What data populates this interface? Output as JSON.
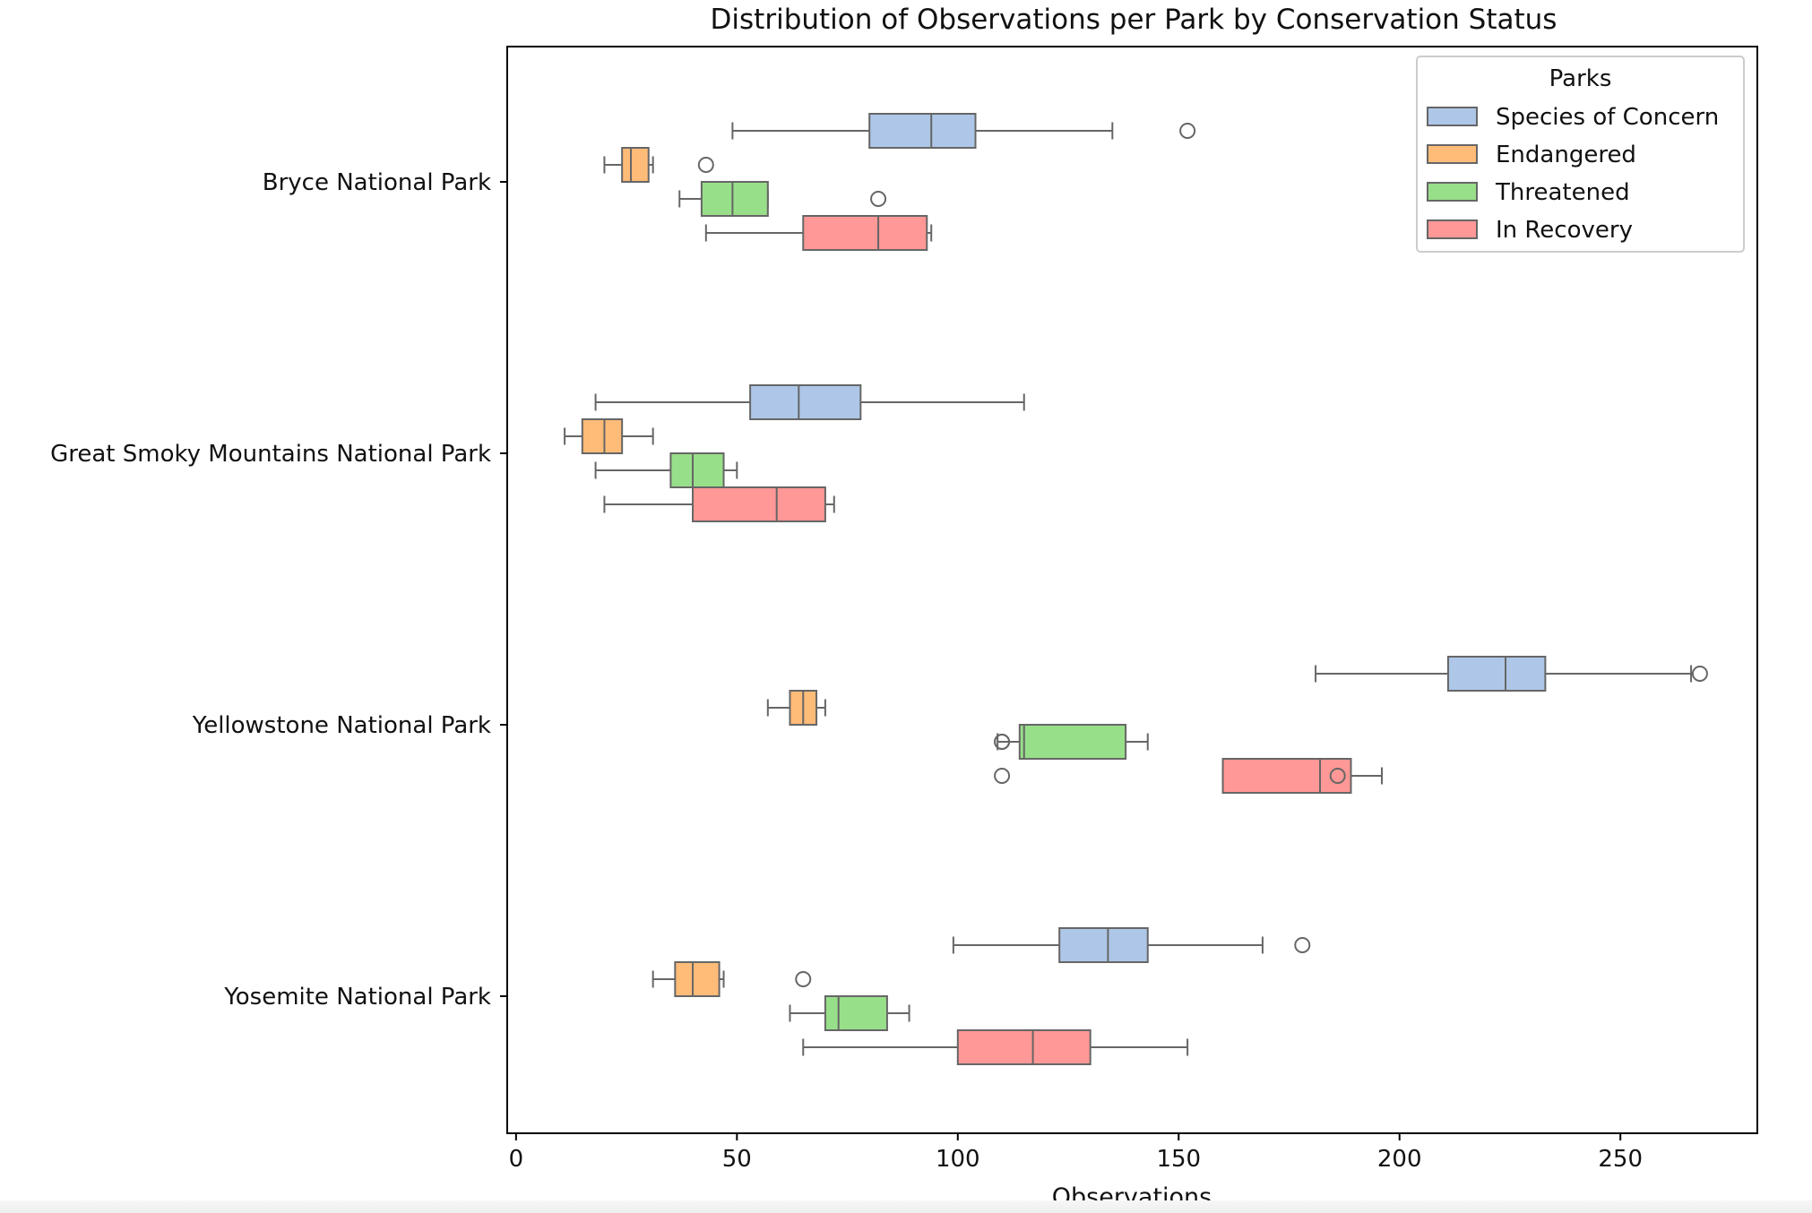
{
  "chart_data": {
    "type": "boxplot-horizontal",
    "title": "Distribution of Observations per Park by Conservation Status",
    "xlabel": "Observations",
    "ylabel": "",
    "xlim": [
      -2,
      281
    ],
    "xticks": [
      0,
      50,
      100,
      150,
      200,
      250
    ],
    "grid": false,
    "legend": {
      "title": "Parks",
      "placement": "top-right",
      "entries": [
        "Species of Concern",
        "Endangered",
        "Threatened",
        "In Recovery"
      ]
    },
    "categories": [
      "Bryce National Park",
      "Great Smoky Mountains National Park",
      "Yellowstone National Park",
      "Yosemite National Park"
    ],
    "series": [
      {
        "name": "Species of Concern",
        "color": "#aec7e8",
        "boxes": [
          {
            "whisker_low": 49,
            "q1": 80,
            "median": 94,
            "q3": 104,
            "whisker_high": 135,
            "outliers": [
              152
            ]
          },
          {
            "whisker_low": 18,
            "q1": 53,
            "median": 64,
            "q3": 78,
            "whisker_high": 115,
            "outliers": []
          },
          {
            "whisker_low": 181,
            "q1": 211,
            "median": 224,
            "q3": 233,
            "whisker_high": 266,
            "outliers": [
              268
            ]
          },
          {
            "whisker_low": 99,
            "q1": 123,
            "median": 134,
            "q3": 143,
            "whisker_high": 169,
            "outliers": [
              178
            ]
          }
        ]
      },
      {
        "name": "Endangered",
        "color": "#ffbb78",
        "boxes": [
          {
            "whisker_low": 20,
            "q1": 24,
            "median": 26,
            "q3": 30,
            "whisker_high": 31,
            "outliers": [
              43
            ]
          },
          {
            "whisker_low": 11,
            "q1": 15,
            "median": 20,
            "q3": 24,
            "whisker_high": 31,
            "outliers": []
          },
          {
            "whisker_low": 57,
            "q1": 62,
            "median": 65,
            "q3": 68,
            "whisker_high": 70,
            "outliers": []
          },
          {
            "whisker_low": 31,
            "q1": 36,
            "median": 40,
            "q3": 46,
            "whisker_high": 47,
            "outliers": [
              65
            ]
          }
        ]
      },
      {
        "name": "Threatened",
        "color": "#98df8a",
        "boxes": [
          {
            "whisker_low": 37,
            "q1": 42,
            "median": 49,
            "q3": 57,
            "whisker_high": 57,
            "outliers": [
              82
            ]
          },
          {
            "whisker_low": 18,
            "q1": 35,
            "median": 40,
            "q3": 47,
            "whisker_high": 50,
            "outliers": []
          },
          {
            "whisker_low": 109,
            "q1": 114,
            "median": 115,
            "q3": 138,
            "whisker_high": 143,
            "outliers": [
              110,
              110
            ]
          },
          {
            "whisker_low": 62,
            "q1": 70,
            "median": 73,
            "q3": 84,
            "whisker_high": 89,
            "outliers": []
          }
        ]
      },
      {
        "name": "In Recovery",
        "color": "#ff9896",
        "boxes": [
          {
            "whisker_low": 43,
            "q1": 65,
            "median": 82,
            "q3": 93,
            "whisker_high": 94,
            "outliers": []
          },
          {
            "whisker_low": 20,
            "q1": 40,
            "median": 59,
            "q3": 70,
            "whisker_high": 72,
            "outliers": []
          },
          {
            "whisker_low": 160,
            "q1": 160,
            "median": 182,
            "q3": 189,
            "whisker_high": 196,
            "outliers": [
              186,
              110
            ]
          },
          {
            "whisker_low": 65,
            "q1": 100,
            "median": 117,
            "q3": 130,
            "whisker_high": 152,
            "outliers": []
          }
        ]
      }
    ]
  }
}
